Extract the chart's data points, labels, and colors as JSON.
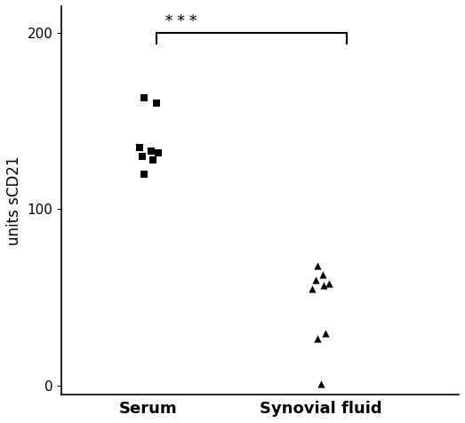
{
  "serum_values": [
    163,
    160,
    135,
    133,
    132,
    130,
    128,
    120
  ],
  "synovial_values": [
    1,
    27,
    30,
    55,
    57,
    58,
    60,
    63,
    68
  ],
  "serum_jitter": [
    -0.02,
    0.05,
    -0.05,
    0.02,
    0.06,
    -0.03,
    0.03,
    -0.02
  ],
  "synovial_jitter": [
    0.0,
    -0.02,
    0.03,
    -0.05,
    0.02,
    0.05,
    -0.03,
    0.01,
    -0.02
  ],
  "ylim": [
    -5,
    215
  ],
  "yticks": [
    0,
    100,
    200
  ],
  "ylabel": "units sCD21",
  "xtick_labels": [
    "Serum",
    "Synovial fluid"
  ],
  "marker_color": "#000000",
  "significance_text": "* * *",
  "background_color": "#ffffff",
  "marker_size": 35,
  "ylabel_fontsize": 12,
  "xtick_fontsize": 13
}
